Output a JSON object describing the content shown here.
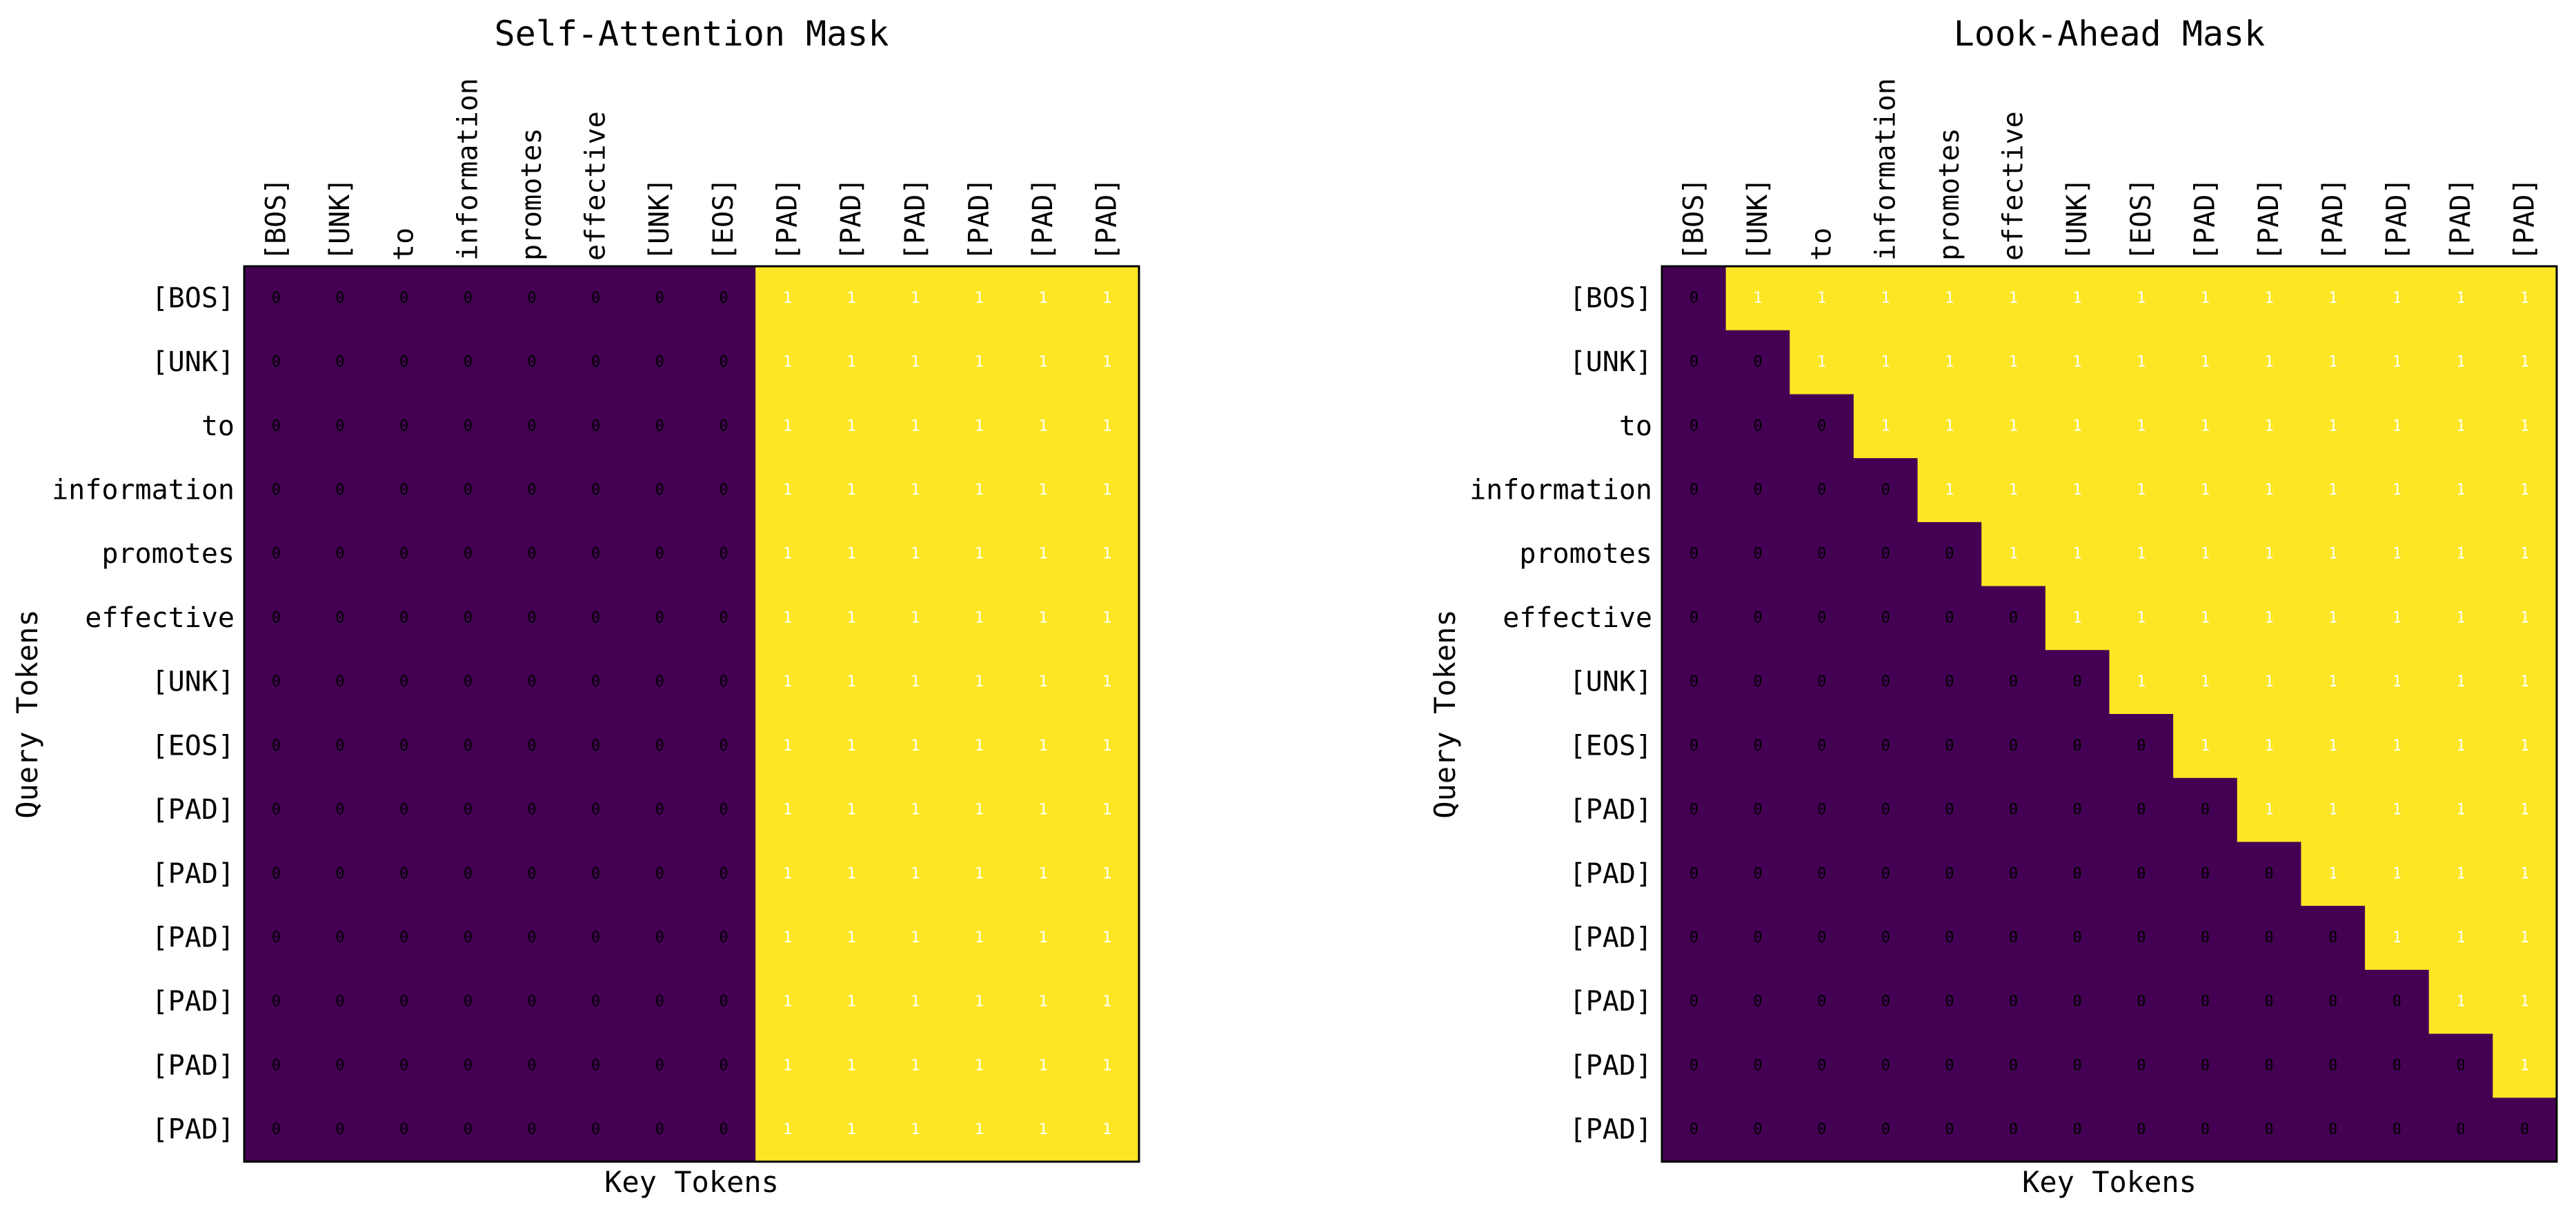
{
  "colors": {
    "low": "#440154",
    "high": "#fde725",
    "text_on_low": "#000000",
    "text_on_high": "#ffffff",
    "frame": "#000000"
  },
  "chart_data": [
    {
      "type": "heatmap",
      "title": "Self-Attention Mask",
      "xlabel": "Key Tokens",
      "ylabel": "Query Tokens",
      "x_tick_position": "top",
      "colormap": "viridis",
      "grid": false,
      "show_values": true,
      "x_categories": [
        "[BOS]",
        "[UNK]",
        "to",
        "information",
        "promotes",
        "effective",
        "[UNK]",
        "[EOS]",
        "[PAD]",
        "[PAD]",
        "[PAD]",
        "[PAD]",
        "[PAD]",
        "[PAD]"
      ],
      "y_categories": [
        "[BOS]",
        "[UNK]",
        "to",
        "information",
        "promotes",
        "effective",
        "[UNK]",
        "[EOS]",
        "[PAD]",
        "[PAD]",
        "[PAD]",
        "[PAD]",
        "[PAD]",
        "[PAD]"
      ],
      "values": [
        [
          0,
          0,
          0,
          0,
          0,
          0,
          0,
          0,
          1,
          1,
          1,
          1,
          1,
          1
        ],
        [
          0,
          0,
          0,
          0,
          0,
          0,
          0,
          0,
          1,
          1,
          1,
          1,
          1,
          1
        ],
        [
          0,
          0,
          0,
          0,
          0,
          0,
          0,
          0,
          1,
          1,
          1,
          1,
          1,
          1
        ],
        [
          0,
          0,
          0,
          0,
          0,
          0,
          0,
          0,
          1,
          1,
          1,
          1,
          1,
          1
        ],
        [
          0,
          0,
          0,
          0,
          0,
          0,
          0,
          0,
          1,
          1,
          1,
          1,
          1,
          1
        ],
        [
          0,
          0,
          0,
          0,
          0,
          0,
          0,
          0,
          1,
          1,
          1,
          1,
          1,
          1
        ],
        [
          0,
          0,
          0,
          0,
          0,
          0,
          0,
          0,
          1,
          1,
          1,
          1,
          1,
          1
        ],
        [
          0,
          0,
          0,
          0,
          0,
          0,
          0,
          0,
          1,
          1,
          1,
          1,
          1,
          1
        ],
        [
          0,
          0,
          0,
          0,
          0,
          0,
          0,
          0,
          1,
          1,
          1,
          1,
          1,
          1
        ],
        [
          0,
          0,
          0,
          0,
          0,
          0,
          0,
          0,
          1,
          1,
          1,
          1,
          1,
          1
        ],
        [
          0,
          0,
          0,
          0,
          0,
          0,
          0,
          0,
          1,
          1,
          1,
          1,
          1,
          1
        ],
        [
          0,
          0,
          0,
          0,
          0,
          0,
          0,
          0,
          1,
          1,
          1,
          1,
          1,
          1
        ],
        [
          0,
          0,
          0,
          0,
          0,
          0,
          0,
          0,
          1,
          1,
          1,
          1,
          1,
          1
        ],
        [
          0,
          0,
          0,
          0,
          0,
          0,
          0,
          0,
          1,
          1,
          1,
          1,
          1,
          1
        ]
      ]
    },
    {
      "type": "heatmap",
      "title": "Look-Ahead Mask",
      "xlabel": "Key Tokens",
      "ylabel": "Query Tokens",
      "x_tick_position": "top",
      "colormap": "viridis",
      "grid": false,
      "show_values": true,
      "x_categories": [
        "[BOS]",
        "[UNK]",
        "to",
        "information",
        "promotes",
        "effective",
        "[UNK]",
        "[EOS]",
        "[PAD]",
        "[PAD]",
        "[PAD]",
        "[PAD]",
        "[PAD]",
        "[PAD]"
      ],
      "y_categories": [
        "[BOS]",
        "[UNK]",
        "to",
        "information",
        "promotes",
        "effective",
        "[UNK]",
        "[EOS]",
        "[PAD]",
        "[PAD]",
        "[PAD]",
        "[PAD]",
        "[PAD]",
        "[PAD]"
      ],
      "values": [
        [
          0,
          1,
          1,
          1,
          1,
          1,
          1,
          1,
          1,
          1,
          1,
          1,
          1,
          1
        ],
        [
          0,
          0,
          1,
          1,
          1,
          1,
          1,
          1,
          1,
          1,
          1,
          1,
          1,
          1
        ],
        [
          0,
          0,
          0,
          1,
          1,
          1,
          1,
          1,
          1,
          1,
          1,
          1,
          1,
          1
        ],
        [
          0,
          0,
          0,
          0,
          1,
          1,
          1,
          1,
          1,
          1,
          1,
          1,
          1,
          1
        ],
        [
          0,
          0,
          0,
          0,
          0,
          1,
          1,
          1,
          1,
          1,
          1,
          1,
          1,
          1
        ],
        [
          0,
          0,
          0,
          0,
          0,
          0,
          1,
          1,
          1,
          1,
          1,
          1,
          1,
          1
        ],
        [
          0,
          0,
          0,
          0,
          0,
          0,
          0,
          1,
          1,
          1,
          1,
          1,
          1,
          1
        ],
        [
          0,
          0,
          0,
          0,
          0,
          0,
          0,
          0,
          1,
          1,
          1,
          1,
          1,
          1
        ],
        [
          0,
          0,
          0,
          0,
          0,
          0,
          0,
          0,
          0,
          1,
          1,
          1,
          1,
          1
        ],
        [
          0,
          0,
          0,
          0,
          0,
          0,
          0,
          0,
          0,
          0,
          1,
          1,
          1,
          1
        ],
        [
          0,
          0,
          0,
          0,
          0,
          0,
          0,
          0,
          0,
          0,
          0,
          1,
          1,
          1
        ],
        [
          0,
          0,
          0,
          0,
          0,
          0,
          0,
          0,
          0,
          0,
          0,
          0,
          1,
          1
        ],
        [
          0,
          0,
          0,
          0,
          0,
          0,
          0,
          0,
          0,
          0,
          0,
          0,
          0,
          1
        ],
        [
          0,
          0,
          0,
          0,
          0,
          0,
          0,
          0,
          0,
          0,
          0,
          0,
          0,
          0
        ]
      ]
    }
  ]
}
